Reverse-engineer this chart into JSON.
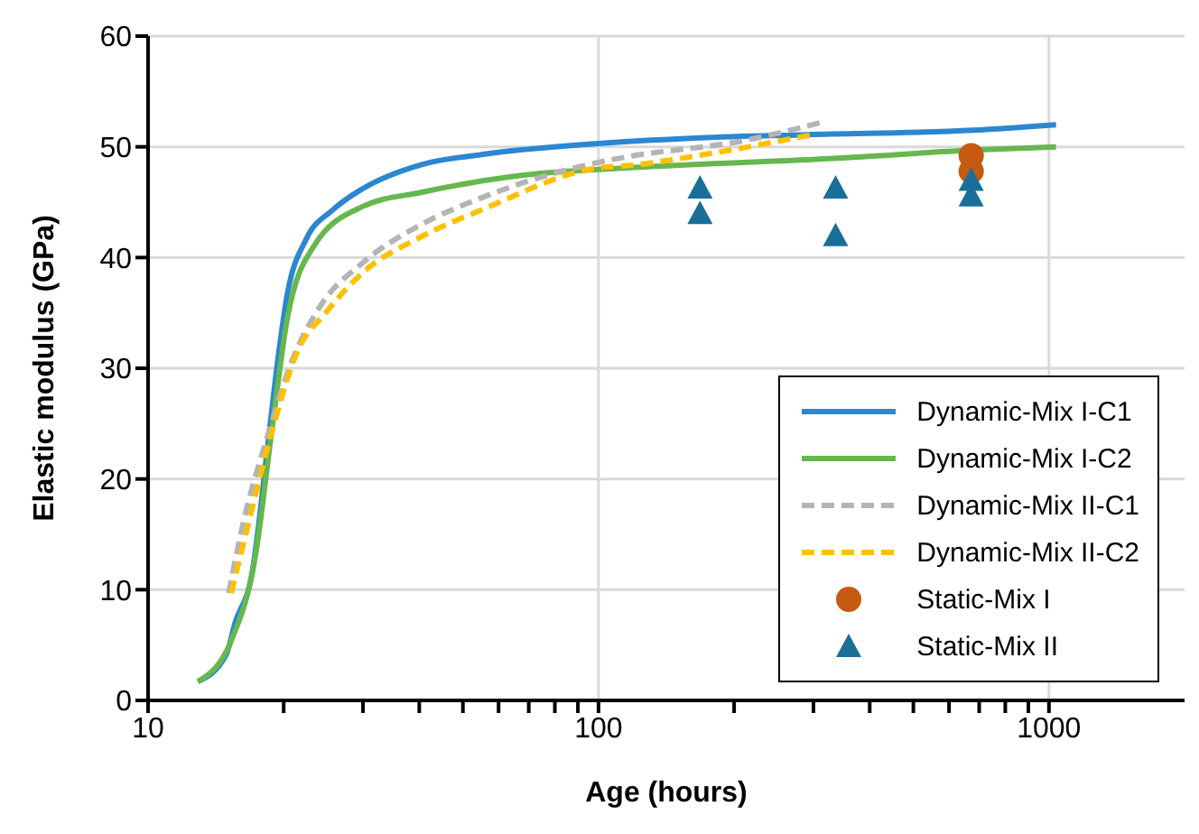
{
  "chart_data": {
    "type": "line",
    "xlabel": "Age (hours)",
    "ylabel": "Elastic modulus (GPa)",
    "log": "x",
    "xlim": [
      10,
      2000
    ],
    "xticks": [
      10,
      {
        "value": 20,
        "label": null
      },
      {
        "value": 30,
        "label": null
      },
      {
        "value": 40,
        "label": null
      },
      {
        "value": 50,
        "label": null
      },
      {
        "value": 60,
        "label": null
      },
      {
        "value": 70,
        "label": null
      },
      {
        "value": 80,
        "label": null
      },
      {
        "value": 90,
        "label": null
      },
      100,
      {
        "value": 200,
        "label": null
      },
      {
        "value": 300,
        "label": null
      },
      {
        "value": 400,
        "label": null
      },
      {
        "value": 500,
        "label": null
      },
      {
        "value": 600,
        "label": null
      },
      {
        "value": 700,
        "label": null
      },
      {
        "value": 800,
        "label": null
      },
      {
        "value": 900,
        "label": null
      },
      1000
    ],
    "ylim": [
      0,
      60
    ],
    "yticks": [
      0,
      10,
      20,
      30,
      40,
      50,
      60
    ],
    "grid": true,
    "legend": "bottom right",
    "marker": "none",
    "series": [
      {
        "name": "Dynamic-Mix I-C1",
        "color": "#2b87d1",
        "line_style": "solid",
        "x": [
          12.9,
          14.9,
          15.6,
          17.0,
          18.4,
          19.2,
          20.4,
          22.4,
          25.7,
          29.9,
          40.5,
          55,
          100,
          167,
          289,
          678,
          1037
        ],
        "values": [
          1.7,
          4.1,
          7,
          11.4,
          22.7,
          29.2,
          36.8,
          41.6,
          44.3,
          46.2,
          48.4,
          49.3,
          50.3,
          50.8,
          51.1,
          51.5,
          52.0
        ]
      },
      {
        "name": "Dynamic-Mix I-C2",
        "color": "#66b84e",
        "line_style": "solid",
        "x": [
          12.9,
          15.3,
          17.3,
          18.9,
          20.4,
          23.4,
          29.9,
          40.5,
          64,
          74.5,
          116,
          347,
          678,
          1037
        ],
        "values": [
          1.7,
          5.4,
          13,
          24.9,
          34.6,
          41.1,
          44.6,
          45.9,
          47.3,
          47.6,
          48.1,
          49.0,
          49.7,
          50.0
        ]
      },
      {
        "name": "Dynamic-Mix II-C1",
        "color": "#b4b4b4",
        "line_style": "dashed",
        "x": [
          15.1,
          16.3,
          18.4,
          20.7,
          24.2,
          29.9,
          40.5,
          55,
          100,
          116,
          213,
          312
        ],
        "values": [
          9.7,
          16.2,
          23.8,
          30.3,
          35.7,
          39.5,
          43,
          45.4,
          48.6,
          49.1,
          50.6,
          52.2
        ]
      },
      {
        "name": "Dynamic-Mix II-C2",
        "color": "#ffc000",
        "line_style": "dashed",
        "x": [
          15.3,
          16.5,
          18.7,
          21.4,
          24.9,
          29.9,
          40.5,
          55,
          100,
          116,
          183,
          298
        ],
        "values": [
          9.7,
          15.1,
          23.8,
          31.4,
          35.1,
          38.6,
          41.9,
          44.3,
          48.1,
          48.3,
          49.5,
          51.1
        ]
      },
      {
        "name": "Static-Mix I",
        "type": "scatter",
        "marker": "circle",
        "color": "#c55a11",
        "x": [
          672,
          672
        ],
        "values": [
          49.2,
          47.8
        ]
      },
      {
        "name": "Static-Mix II",
        "type": "scatter",
        "marker": "triangle",
        "color": "#1a6f9a",
        "x": [
          168,
          168,
          336,
          336,
          672,
          672
        ],
        "values": [
          46.3,
          44.0,
          46.3,
          42.0,
          47.0,
          45.6
        ]
      }
    ]
  }
}
